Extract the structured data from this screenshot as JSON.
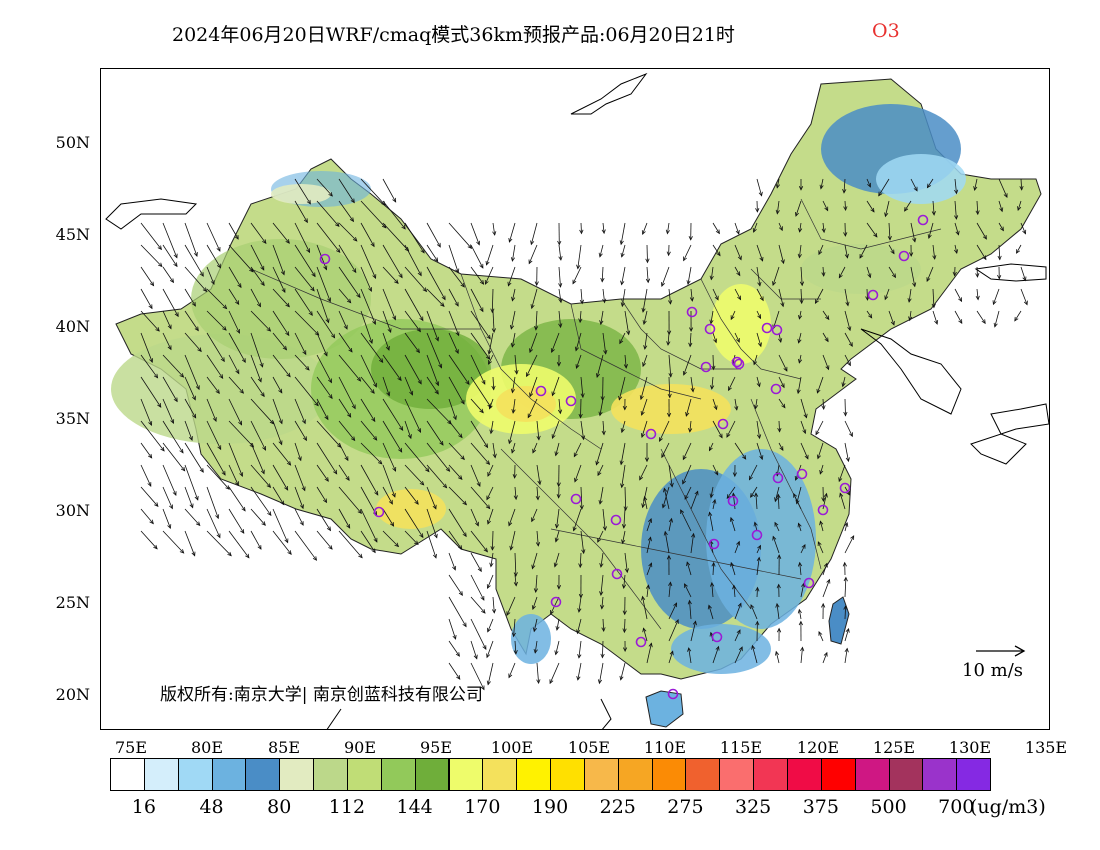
{
  "title": {
    "main": "2024年06月20日WRF/cmaq模式36km预报产品:06月20日21时",
    "species": "O3"
  },
  "axes": {
    "lat_labels": [
      "50N",
      "45N",
      "40N",
      "35N",
      "30N",
      "25N",
      "20N"
    ],
    "lon_labels": [
      "75E",
      "80E",
      "85E",
      "90E",
      "95E",
      "100E",
      "105E",
      "110E",
      "115E",
      "120E",
      "125E",
      "130E",
      "135E"
    ]
  },
  "wind_reference": {
    "label": "10 m/s",
    "arrow_icon": "right-arrow-icon"
  },
  "copyright": "版权所有:南京大学| 南京创蓝科技有限公司",
  "colorbar": {
    "unit": "(ug/m3)",
    "colors": [
      "#ffffff",
      "#d4eefb",
      "#a0d9f5",
      "#6cb2e0",
      "#4a8dc6",
      "#e2ebc1",
      "#bcd88a",
      "#c0dd76",
      "#92c95a",
      "#6fae3a",
      "#eefc6b",
      "#f4e15c",
      "#fff200",
      "#ffe000",
      "#f7b84a",
      "#f6a623",
      "#fb8b05",
      "#f0612e",
      "#fa6e6e",
      "#f23654",
      "#f00c46",
      "#ff0000",
      "#cf1783",
      "#a3335d",
      "#9a33cb",
      "#8529e3"
    ],
    "tick_labels": [
      "16",
      "48",
      "80",
      "112",
      "144",
      "170",
      "190",
      "225",
      "275",
      "325",
      "375",
      "500",
      "700"
    ]
  },
  "stations_color": "#9a1bd6",
  "background_color": "#ffffff"
}
